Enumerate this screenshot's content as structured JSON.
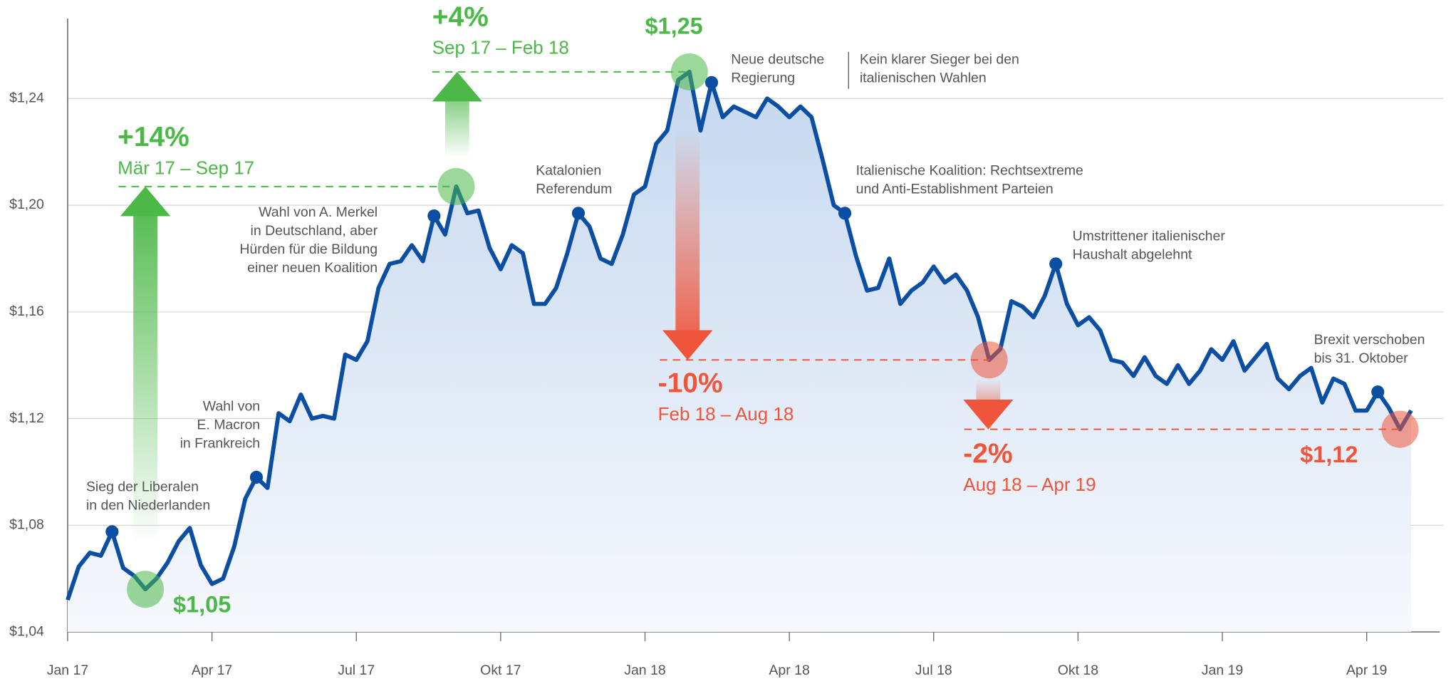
{
  "chart_data": {
    "type": "line",
    "categories": [
      "Jan 17",
      null,
      null,
      null,
      null,
      null,
      null,
      null,
      null,
      null,
      null,
      null,
      null,
      "Apr 17",
      null,
      null,
      null,
      null,
      null,
      null,
      null,
      null,
      null,
      null,
      null,
      null,
      "Jul 17",
      null,
      null,
      null,
      null,
      null,
      null,
      null,
      null,
      null,
      null,
      null,
      null,
      "Okt 17",
      null,
      null,
      null,
      null,
      null,
      null,
      null,
      null,
      null,
      null,
      null,
      null,
      "Jan 18",
      null,
      null,
      null,
      null,
      null,
      null,
      null,
      null,
      null,
      null,
      null,
      null,
      "Apr 18",
      null,
      null,
      null,
      null,
      null,
      null,
      null,
      null,
      null,
      null,
      null,
      null,
      "Jul 18",
      null,
      null,
      null,
      null,
      null,
      null,
      null,
      null,
      null,
      null,
      null,
      null,
      "Okt 18",
      null,
      null,
      null,
      null,
      null,
      null,
      null,
      null,
      null,
      null,
      null,
      null,
      "Jan 19",
      null,
      null,
      null,
      null,
      null,
      null,
      null,
      null,
      null,
      null,
      null,
      null,
      "Apr 19",
      null,
      null,
      null,
      null
    ],
    "series": [
      {
        "color": "#0b4ea2",
        "values": [
          1.052,
          1.0645,
          1.0697,
          1.0686,
          1.0776,
          1.064,
          1.061,
          1.056,
          1.06,
          1.066,
          1.074,
          1.079,
          1.065,
          1.058,
          1.06,
          1.072,
          1.09,
          1.098,
          1.094,
          1.122,
          1.119,
          1.129,
          1.12,
          1.121,
          1.12,
          1.144,
          1.142,
          1.149,
          1.169,
          1.178,
          1.179,
          1.185,
          1.179,
          1.196,
          1.189,
          1.207,
          1.197,
          1.198,
          1.184,
          1.176,
          1.185,
          1.182,
          1.163,
          1.163,
          1.169,
          1.182,
          1.197,
          1.192,
          1.18,
          1.178,
          1.189,
          1.204,
          1.207,
          1.223,
          1.228,
          1.247,
          1.25,
          1.228,
          1.246,
          1.233,
          1.237,
          1.235,
          1.233,
          1.24,
          1.237,
          1.233,
          1.237,
          1.233,
          1.217,
          1.2,
          1.197,
          1.181,
          1.168,
          1.169,
          1.18,
          1.163,
          1.168,
          1.171,
          1.177,
          1.171,
          1.174,
          1.168,
          1.158,
          1.142,
          1.146,
          1.164,
          1.162,
          1.158,
          1.166,
          1.178,
          1.163,
          1.155,
          1.158,
          1.153,
          1.142,
          1.141,
          1.136,
          1.143,
          1.136,
          1.133,
          1.14,
          1.133,
          1.138,
          1.146,
          1.142,
          1.149,
          1.138,
          1.143,
          1.148,
          1.135,
          1.131,
          1.136,
          1.139,
          1.126,
          1.135,
          1.133,
          1.123,
          1.123,
          1.13,
          1.124,
          1.116,
          1.123
        ]
      }
    ],
    "ylim": [
      1.04,
      1.27
    ],
    "yticks": [
      {
        "value": 1.04,
        "label": "$1,04"
      },
      {
        "value": 1.08,
        "label": "$1,08"
      },
      {
        "value": 1.12,
        "label": "$1,12"
      },
      {
        "value": 1.16,
        "label": "$1,16"
      },
      {
        "value": 1.2,
        "label": "$1,20"
      },
      {
        "value": 1.24,
        "label": "$1,24"
      }
    ],
    "grid": true,
    "gain_color": "#4cb848",
    "loss_color": "#ef553a",
    "annotations": [
      {
        "lines": [
          "Sieg der Liberalen",
          "in den Niederlanden"
        ]
      },
      {
        "lines": [
          "Wahl von",
          "E. Macron",
          "in Frankreich"
        ]
      },
      {
        "lines": [
          "Wahl von A. Merkel",
          "in Deutschland, aber",
          "Hürden für die Bildung",
          "einer neuen Koalition"
        ]
      },
      {
        "lines": [
          "Katalonien",
          "Referendum"
        ]
      },
      {
        "lines": [
          "Neue deutsche",
          "Regierung"
        ]
      },
      {
        "lines": [
          "Kein klarer Sieger bei den",
          "italienischen Wahlen"
        ]
      },
      {
        "lines": [
          "Italienische Koalition: Rechtsextreme",
          "und Anti-Establishment Parteien"
        ]
      },
      {
        "lines": [
          "Umstrittener italienischer",
          "Haushalt abgelehnt"
        ]
      },
      {
        "lines": [
          "Brexit verschoben",
          "bis 31. Oktober"
        ]
      }
    ],
    "changes": [
      {
        "change": "+14%",
        "period": "Mär 17 – Sep 17"
      },
      {
        "change": "+4%",
        "period": "Sep 17 – Feb 18"
      },
      {
        "change": "-10%",
        "period": "Feb 18 – Aug 18"
      },
      {
        "change": "-2%",
        "period": "Aug 18 – Apr 19"
      }
    ],
    "price_labels": [
      "$1,05",
      "$1,25",
      "$1,12"
    ]
  }
}
